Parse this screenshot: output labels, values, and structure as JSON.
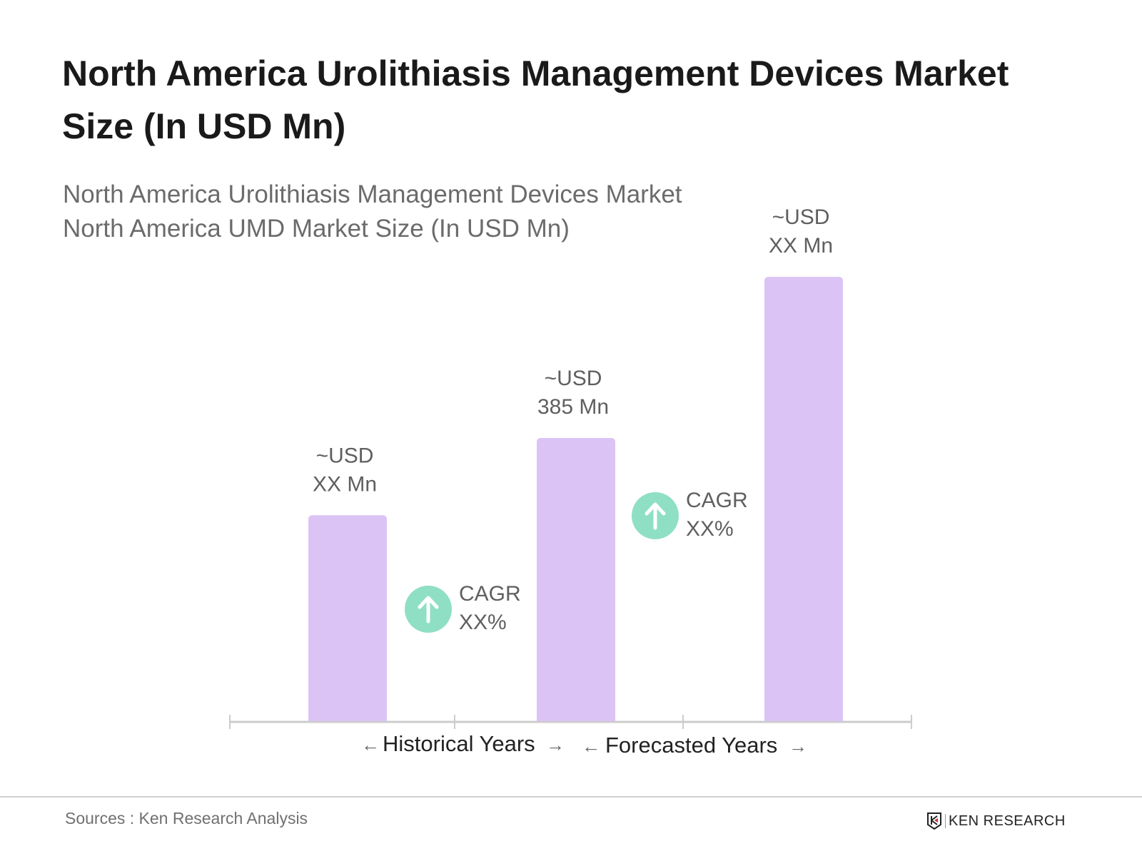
{
  "header": {
    "title": "North America Urolithiasis Management Devices Market Size (In USD Mn)",
    "subtitle_line1": "North America Urolithiasis Management Devices Market",
    "subtitle_line2": "North America UMD Market Size (In USD Mn)"
  },
  "chart_data": {
    "type": "bar",
    "categories": [
      "",
      "",
      ""
    ],
    "values": [
      280,
      385,
      604
    ],
    "data_labels": [
      [
        "~USD",
        "XX Mn"
      ],
      [
        "~USD",
        "385 Mn"
      ],
      [
        "~USD",
        "XX Mn"
      ]
    ],
    "bar_color": "#dcc3f5",
    "cagr": [
      {
        "label": "CAGR",
        "value": "XX%"
      },
      {
        "label": "CAGR",
        "value": "XX%"
      }
    ],
    "cagr_color": "#8fdfc4",
    "periods": [
      "Historical Years",
      "Forecasted Years"
    ],
    "grid": false
  },
  "footer": {
    "sources": "Sources : Ken Research Analysis",
    "logo": "KEN RESEARCH"
  }
}
